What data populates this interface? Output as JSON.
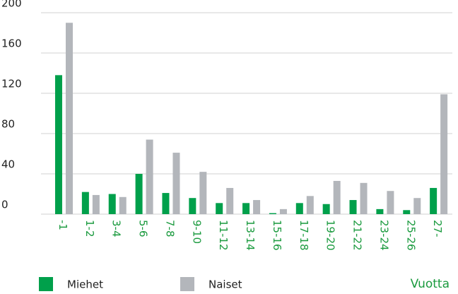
{
  "chart_data": {
    "type": "bar",
    "categories": [
      "-1",
      "1-2",
      "3-4",
      "5-6",
      "7-8",
      "9-10",
      "11-12",
      "13-14",
      "15-16",
      "17-18",
      "19-20",
      "21-22",
      "23-24",
      "25-26",
      "27-"
    ],
    "series": [
      {
        "name": "Miehet",
        "color": "#00a04b",
        "values": [
          138,
          22,
          20,
          40,
          21,
          16,
          11,
          11,
          1,
          11,
          10,
          14,
          5,
          4,
          26
        ]
      },
      {
        "name": "Naiset",
        "color": "#b3b6bb",
        "values": [
          190,
          19,
          17,
          74,
          61,
          42,
          26,
          14,
          5,
          18,
          33,
          31,
          23,
          16,
          119
        ]
      }
    ],
    "x_label": "Vuotta",
    "ylim": [
      0,
      200
    ],
    "yticks": [
      0,
      40,
      80,
      120,
      160,
      200
    ],
    "grid": true
  }
}
